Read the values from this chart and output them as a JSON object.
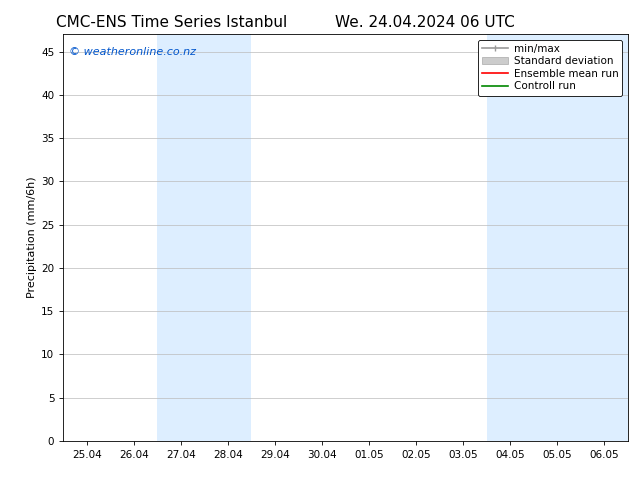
{
  "title_left": "CMC-ENS Time Series Istanbul",
  "title_right": "We. 24.04.2024 06 UTC",
  "ylabel": "Precipitation (mm/6h)",
  "ylim": [
    0,
    47
  ],
  "yticks": [
    0,
    5,
    10,
    15,
    20,
    25,
    30,
    35,
    40,
    45
  ],
  "xtick_labels": [
    "25.04",
    "26.04",
    "27.04",
    "28.04",
    "29.04",
    "30.04",
    "01.05",
    "02.05",
    "03.05",
    "04.05",
    "05.05",
    "06.05"
  ],
  "xtick_positions": [
    0,
    1,
    2,
    3,
    4,
    5,
    6,
    7,
    8,
    9,
    10,
    11
  ],
  "shaded_bands": [
    {
      "xmin": 1.5,
      "xmax": 3.5,
      "color": "#ddeeff"
    },
    {
      "xmin": 8.5,
      "xmax": 9.5,
      "color": "#ddeeff"
    },
    {
      "xmin": 9.5,
      "xmax": 11.5,
      "color": "#ddeeff"
    }
  ],
  "watermark": "© weatheronline.co.nz",
  "watermark_color": "#0055cc",
  "legend_items": [
    {
      "label": "min/max",
      "color": "#999999",
      "lw": 1.2
    },
    {
      "label": "Standard deviation",
      "color": "#cccccc",
      "lw": 6
    },
    {
      "label": "Ensemble mean run",
      "color": "#ff0000",
      "lw": 1.2
    },
    {
      "label": "Controll run",
      "color": "#008800",
      "lw": 1.2
    }
  ],
  "background_color": "#ffffff",
  "grid_color": "#bbbbbb",
  "title_fontsize": 11,
  "tick_fontsize": 7.5,
  "ylabel_fontsize": 8,
  "watermark_fontsize": 8,
  "legend_fontsize": 7.5
}
